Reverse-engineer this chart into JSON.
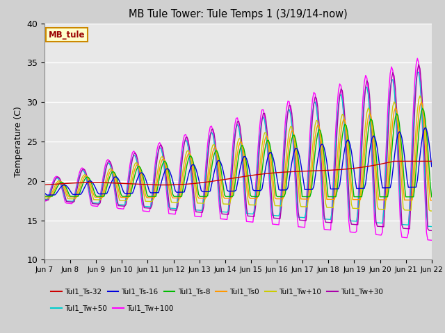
{
  "title": "MB Tule Tower: Tule Temps 1 (3/19/14-now)",
  "ylabel": "Temperature (C)",
  "ylim": [
    10,
    40
  ],
  "xlim": [
    0,
    15
  ],
  "bg_color": "#e8e8e8",
  "annotation_box": {
    "text": "MB_tule",
    "facecolor": "#ffffcc",
    "edgecolor": "#cc8800",
    "textcolor": "#990000"
  },
  "xtick_labels": [
    "Jun 7",
    "Jun 8",
    "Jun 9",
    "Jun 10",
    "Jun 11",
    "Jun 12",
    "Jun 13",
    "Jun 14",
    "Jun 15",
    "Jun 16",
    "Jun 17",
    "Jun 18",
    "Jun 19",
    "Jun 20",
    "Jun 21",
    "Jun 22"
  ],
  "ytick_labels": [
    10,
    15,
    20,
    25,
    30,
    35,
    40
  ],
  "series_names": [
    "Tul1_Ts-32",
    "Tul1_Ts-16",
    "Tul1_Ts-8",
    "Tul1_Ts0",
    "Tul1_Tw+10",
    "Tul1_Tw+30",
    "Tul1_Tw+50",
    "Tul1_Tw+100"
  ],
  "series_colors": [
    "#cc0000",
    "#0000dd",
    "#00bb00",
    "#ff9900",
    "#cccc00",
    "#aa00aa",
    "#00cccc",
    "#ff00ff"
  ],
  "legend_ncol_row1": 6,
  "legend_labels_row1": [
    "Tul1_Ts-32",
    "Tul1_Ts-16",
    "Tul1_Ts-8",
    "Tul1_Ts0",
    "Tul1_Tw+10",
    "Tul1_Tw+30"
  ],
  "legend_labels_row2": [
    "Tul1_Tw+50",
    "Tul1_Tw+100"
  ]
}
